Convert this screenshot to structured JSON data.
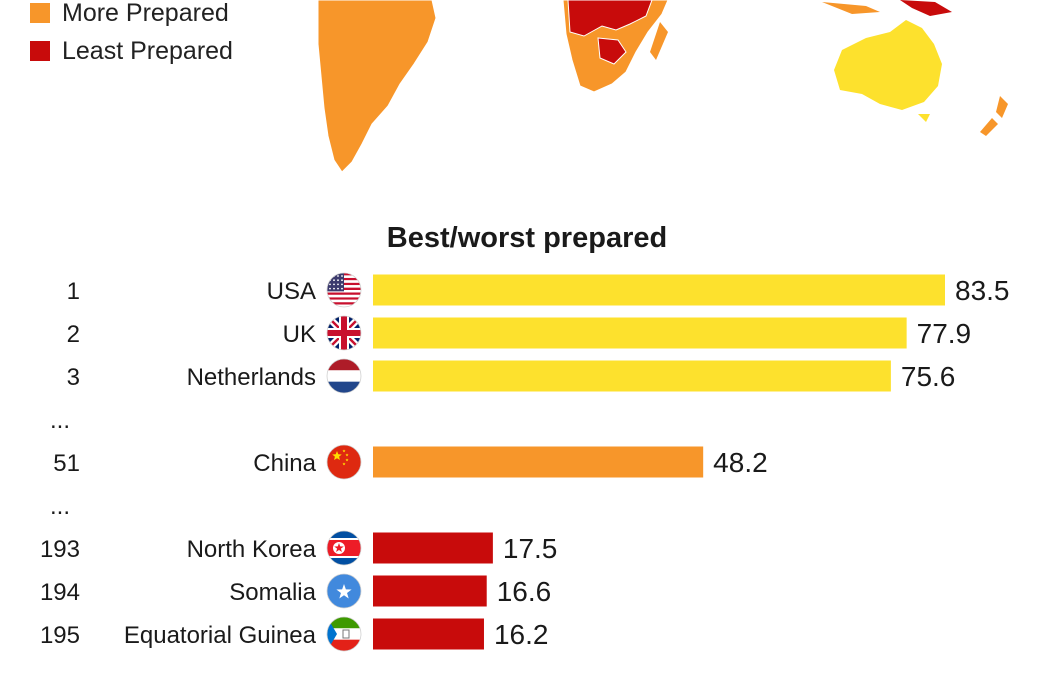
{
  "legend": {
    "items": [
      {
        "label": "More Prepared",
        "color": "#f7962a"
      },
      {
        "label": "Least Prepared",
        "color": "#c80b0b"
      }
    ]
  },
  "colors": {
    "most_prepared": "#fde12d",
    "more_prepared": "#f7962a",
    "least_prepared": "#c80b0b"
  },
  "chart_data": {
    "type": "bar",
    "orientation": "horizontal",
    "title": "Best/worst prepared",
    "xlim": [
      0,
      100
    ],
    "grid": false,
    "rows": [
      {
        "rank": "1",
        "country": "USA",
        "flag": "usa-flag",
        "value": 83.5,
        "color": "#fde12d"
      },
      {
        "rank": "2",
        "country": "UK",
        "flag": "uk-flag",
        "value": 77.9,
        "color": "#fde12d"
      },
      {
        "rank": "3",
        "country": "Netherlands",
        "flag": "netherlands-flag",
        "value": 75.6,
        "color": "#fde12d"
      },
      {
        "rank": "...",
        "gap": true
      },
      {
        "rank": "51",
        "country": "China",
        "flag": "china-flag",
        "value": 48.2,
        "color": "#f7962a"
      },
      {
        "rank": "...",
        "gap": true
      },
      {
        "rank": "193",
        "country": "North Korea",
        "flag": "north-korea-flag",
        "value": 17.5,
        "color": "#c80b0b"
      },
      {
        "rank": "194",
        "country": "Somalia",
        "flag": "somalia-flag",
        "value": 16.6,
        "color": "#c80b0b"
      },
      {
        "rank": "195",
        "country": "Equatorial Guinea",
        "flag": "equatorial-guinea-flag",
        "value": 16.2,
        "color": "#c80b0b"
      }
    ]
  }
}
